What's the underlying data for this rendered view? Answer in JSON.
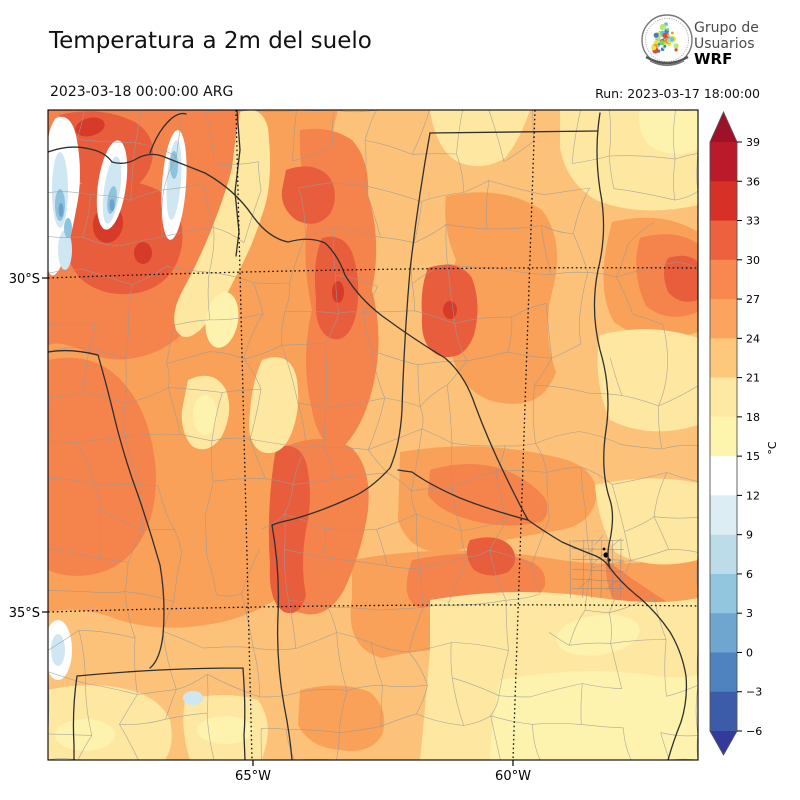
{
  "header": {
    "title": "Temperatura a 2m del suelo",
    "valid_time": "2023-03-18 00:00:00 ARG",
    "run": "Run: 2023-03-17 18:00:00"
  },
  "logo": {
    "line1": "Grupo de",
    "line2": "Usuarios",
    "line3": "WRF"
  },
  "axes": {
    "lat_labels": [
      "30°S",
      "35°S"
    ],
    "lon_labels": [
      "65°W",
      "60°W"
    ]
  },
  "colorbar": {
    "unit": "°C",
    "tick_labels": [
      "39",
      "36",
      "33",
      "30",
      "27",
      "24",
      "21",
      "18",
      "15",
      "12",
      "9",
      "6",
      "3",
      "0",
      "−3",
      "−6"
    ],
    "tick_values": [
      39,
      36,
      33,
      30,
      27,
      24,
      21,
      18,
      15,
      12,
      9,
      6,
      3,
      0,
      -3,
      -6
    ],
    "segment_colors_top_to_bottom": [
      "#9f1127",
      "#bb1a2a",
      "#d73027",
      "#ee613e",
      "#f8884f",
      "#fca45f",
      "#fdc87b",
      "#fee9a4",
      "#fdf5ae",
      "#ffffff",
      "#dcedf4",
      "#bcdcea",
      "#92c5de",
      "#6ea6cf",
      "#4f83c0",
      "#3c5ba8",
      "#333a9c"
    ],
    "field_band_colors": {
      "band_21_24_base": "#fcc279",
      "band_24_27": "#f9a158",
      "band_27_30": "#f5834c",
      "band_30_33": "#e85e3d",
      "band_33_36": "#d63b2a",
      "band_18_21": "#fee7a0",
      "band_15_18": "#fdf3ae",
      "band_12_15": "#ffffff",
      "band_9_12": "#cfe7f2",
      "band_3_9": "#8fc3dd",
      "band_0_3": "#6aa2cc"
    }
  }
}
